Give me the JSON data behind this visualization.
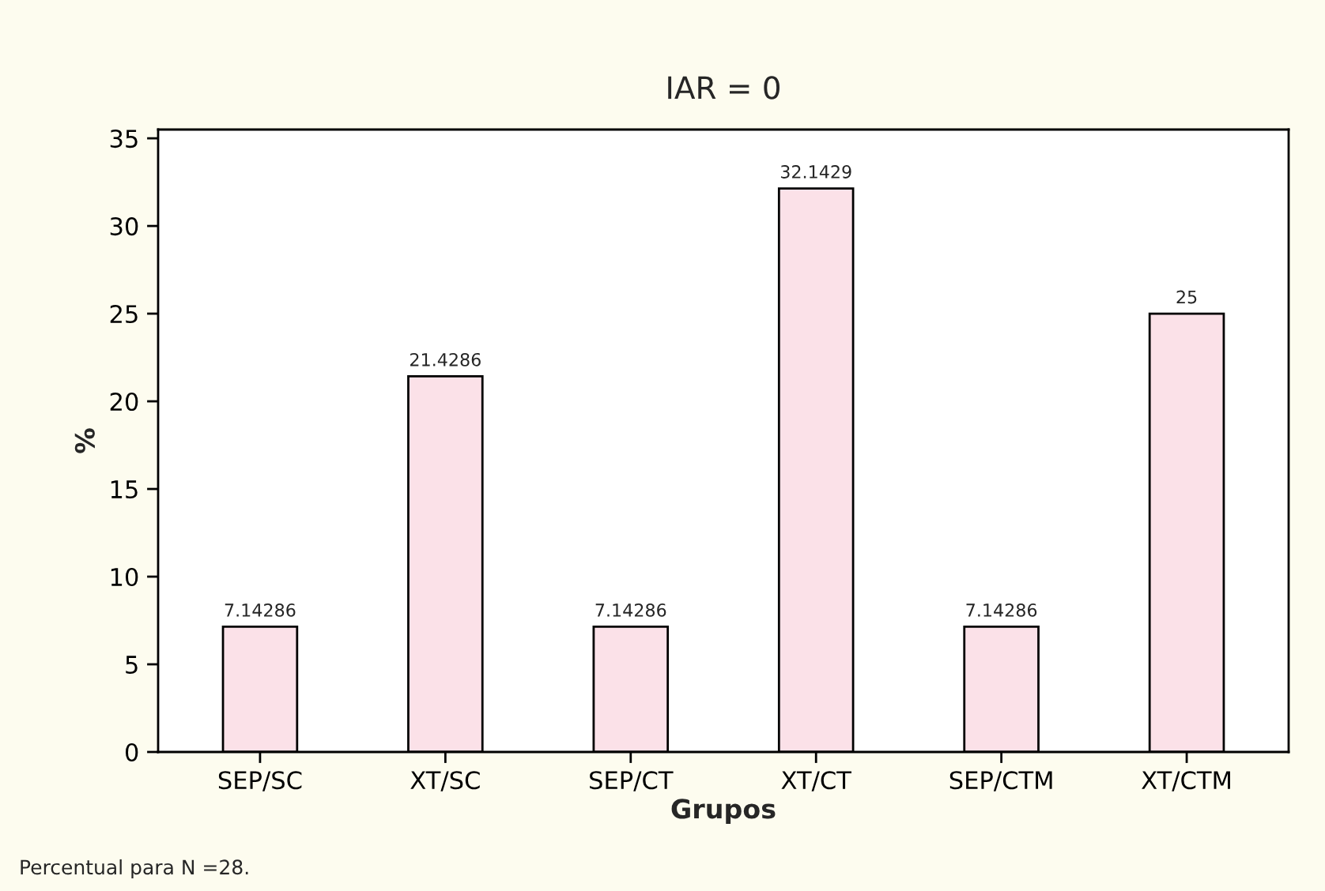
{
  "chart_data": {
    "type": "bar",
    "title": "IAR = 0",
    "xlabel": "Grupos",
    "ylabel": "%",
    "categories": [
      "SEP/SC",
      "XT/SC",
      "SEP/CT",
      "XT/CT",
      "SEP/CTM",
      "XT/CTM"
    ],
    "values": [
      7.14286,
      21.4286,
      7.14286,
      32.1429,
      7.14286,
      25
    ],
    "color": "#fbe1e8",
    "ylim": [
      0,
      35.5
    ],
    "yticks": [
      0,
      5,
      10,
      15,
      20,
      25,
      30,
      35
    ],
    "grid": false,
    "data_labels": true,
    "annotations": [
      "Percentual para N =28."
    ]
  }
}
